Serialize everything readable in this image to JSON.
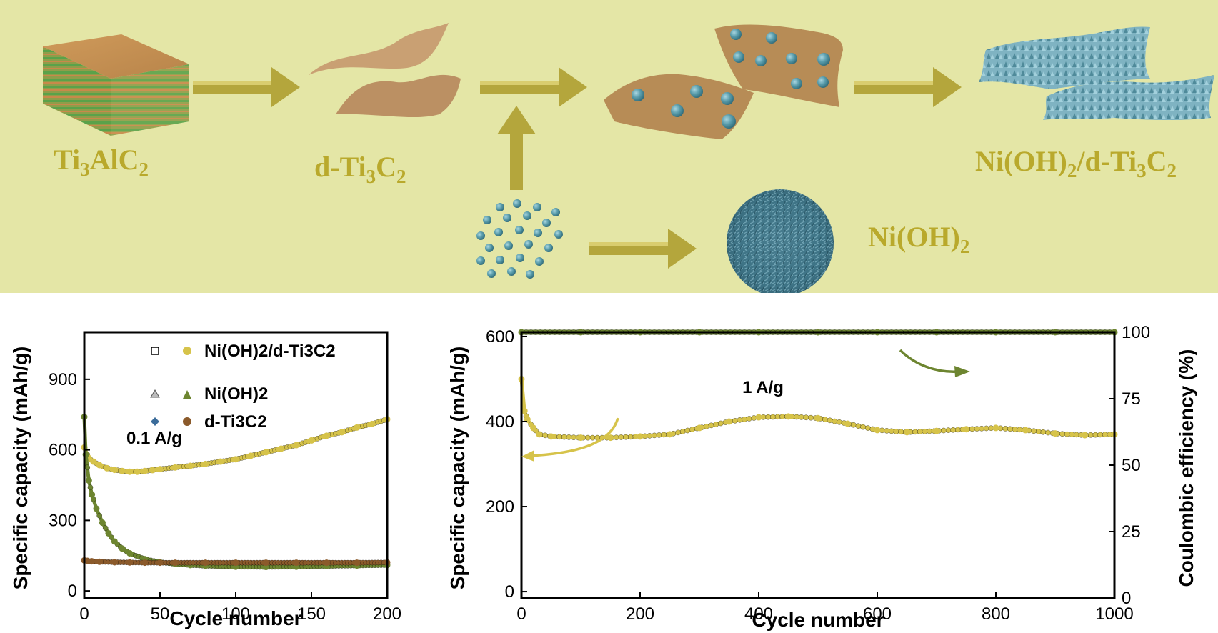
{
  "scheme": {
    "ti3alc2": {
      "prefix": "Ti",
      "s1": "3",
      "mid": "AlC",
      "s2": "2"
    },
    "dti3c2": {
      "prefix": "d-Ti",
      "s1": "3",
      "mid": "C",
      "s2": "2"
    },
    "composite": {
      "prefix": "Ni(OH)",
      "s1": "2",
      "mid": "/d-Ti",
      "s2": "3",
      "end": "C",
      "s3": "2"
    },
    "nioh2": {
      "prefix": "Ni(OH)",
      "s1": "2"
    },
    "colors": {
      "background": "#e4e6a6",
      "label": "#b9a92c",
      "arrow": "#b4a63c",
      "flake": "#b78c56",
      "sphere": "#5a9dac"
    }
  },
  "chart_data": [
    {
      "type": "scatter",
      "xlabel": "Cycle number",
      "ylabel": "Specific capacity (mAh/g)",
      "xlim": [
        0,
        200
      ],
      "ylim": [
        -30,
        1100
      ],
      "xticks": [
        "0",
        "50",
        "100",
        "150",
        "200"
      ],
      "yticks": [
        "0",
        "300",
        "600",
        "900"
      ],
      "annotation": "0.1 A/g",
      "legend": {
        "position": "top-right",
        "entries": [
          "Ni(OH)2/d-Ti3C2",
          "Ni(OH)2",
          "d-Ti3C2"
        ]
      },
      "series": [
        {
          "name": "Ni(OH)2/d-Ti3C2",
          "color": "#d6c34a",
          "x": [
            0,
            3,
            6,
            10,
            15,
            20,
            25,
            30,
            35,
            40,
            45,
            50,
            60,
            70,
            80,
            90,
            100,
            110,
            120,
            130,
            140,
            150,
            160,
            170,
            180,
            190,
            200
          ],
          "values": [
            610,
            565,
            550,
            535,
            522,
            515,
            510,
            507,
            507,
            510,
            514,
            518,
            525,
            532,
            540,
            550,
            560,
            575,
            590,
            605,
            620,
            640,
            660,
            675,
            695,
            710,
            730
          ]
        },
        {
          "name": "Ni(OH)2",
          "color": "#6d8530",
          "x": [
            0,
            1,
            3,
            5,
            8,
            12,
            16,
            20,
            25,
            30,
            40,
            50,
            60,
            70,
            80,
            100,
            120,
            140,
            160,
            180,
            200
          ],
          "values": [
            740,
            580,
            470,
            410,
            350,
            290,
            245,
            210,
            180,
            160,
            135,
            122,
            115,
            110,
            107,
            103,
            102,
            103,
            106,
            108,
            110
          ]
        },
        {
          "name": "d-Ti3C2",
          "color": "#8b5a2b",
          "x": [
            0,
            2,
            5,
            10,
            20,
            30,
            40,
            50,
            60,
            80,
            100,
            120,
            140,
            160,
            180,
            200
          ],
          "values": [
            130,
            128,
            126,
            124,
            122,
            121,
            120,
            120,
            120,
            120,
            120,
            120,
            120,
            120,
            120,
            121
          ]
        }
      ]
    },
    {
      "type": "scatter",
      "xlabel": "Cycle number",
      "ylabel": "Specific capacity (mAh/g)",
      "ylabel_right": "Coulombic efficiency (%)",
      "xlim": [
        0,
        1000
      ],
      "ylim": [
        -15,
        610
      ],
      "ylim_right": [
        0,
        100
      ],
      "xticks": [
        "0",
        "200",
        "400",
        "600",
        "800",
        "1000"
      ],
      "yticks": [
        "0",
        "200",
        "400",
        "600"
      ],
      "yticks_right": [
        "0",
        "25",
        "50",
        "75",
        "100"
      ],
      "annotation": "1 A/g",
      "series": [
        {
          "name": "Specific capacity",
          "color": "#d6c34a",
          "axis": "left",
          "x": [
            0,
            5,
            10,
            20,
            30,
            50,
            100,
            150,
            200,
            250,
            300,
            350,
            400,
            450,
            500,
            550,
            600,
            650,
            700,
            750,
            800,
            850,
            900,
            950,
            1000
          ],
          "values": [
            500,
            425,
            405,
            385,
            370,
            365,
            362,
            362,
            365,
            370,
            385,
            400,
            410,
            412,
            408,
            395,
            380,
            375,
            378,
            382,
            385,
            380,
            372,
            368,
            370
          ]
        },
        {
          "name": "Coulombic efficiency",
          "color": "#6d8530",
          "axis": "right",
          "x": [
            0,
            100,
            200,
            300,
            400,
            500,
            600,
            700,
            800,
            900,
            1000
          ],
          "values": [
            100,
            100,
            100,
            100,
            100,
            100,
            100,
            100,
            100,
            100,
            100
          ]
        }
      ]
    }
  ]
}
